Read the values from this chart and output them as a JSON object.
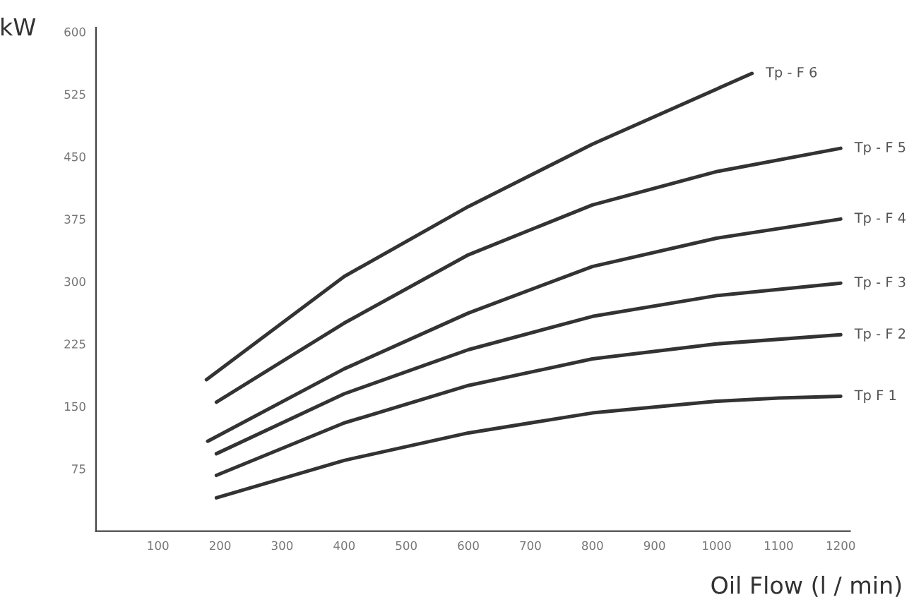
{
  "chart_data": {
    "type": "line",
    "xlabel": "Oil Flow (l / min)",
    "ylabel": "kW",
    "xlim": [
      0,
      1215
    ],
    "ylim": [
      0,
      605
    ],
    "xticks": [
      100,
      200,
      300,
      400,
      500,
      600,
      700,
      800,
      900,
      1000,
      1100,
      1200
    ],
    "yticks": [
      75,
      150,
      225,
      300,
      375,
      450,
      525,
      600
    ],
    "grid": false,
    "legend": false,
    "marker": "none",
    "line_style": "solid",
    "series": [
      {
        "name": "Tp - F 6",
        "color": "#333333",
        "x": [
          178,
          400,
          600,
          800,
          1057
        ],
        "values": [
          182,
          306,
          390,
          465,
          550
        ]
      },
      {
        "name": "Tp - F 5",
        "color": "#333333",
        "x": [
          194,
          400,
          600,
          800,
          1000,
          1200
        ],
        "values": [
          155,
          250,
          332,
          392,
          432,
          460
        ]
      },
      {
        "name": "Tp - F 4",
        "color": "#333333",
        "x": [
          180,
          400,
          600,
          800,
          1000,
          1200
        ],
        "values": [
          108,
          195,
          262,
          318,
          352,
          375
        ]
      },
      {
        "name": "Tp - F 3",
        "color": "#333333",
        "x": [
          194,
          400,
          600,
          800,
          1000,
          1200
        ],
        "values": [
          93,
          165,
          218,
          258,
          283,
          298
        ]
      },
      {
        "name": "Tp - F 2",
        "color": "#333333",
        "x": [
          194,
          400,
          600,
          800,
          1000,
          1200
        ],
        "values": [
          67,
          130,
          175,
          207,
          225,
          236
        ]
      },
      {
        "name": "Tp F 1",
        "color": "#333333",
        "x": [
          194,
          400,
          600,
          800,
          1000,
          1100,
          1200
        ],
        "values": [
          40,
          85,
          118,
          142,
          156,
          160,
          162
        ]
      }
    ]
  }
}
